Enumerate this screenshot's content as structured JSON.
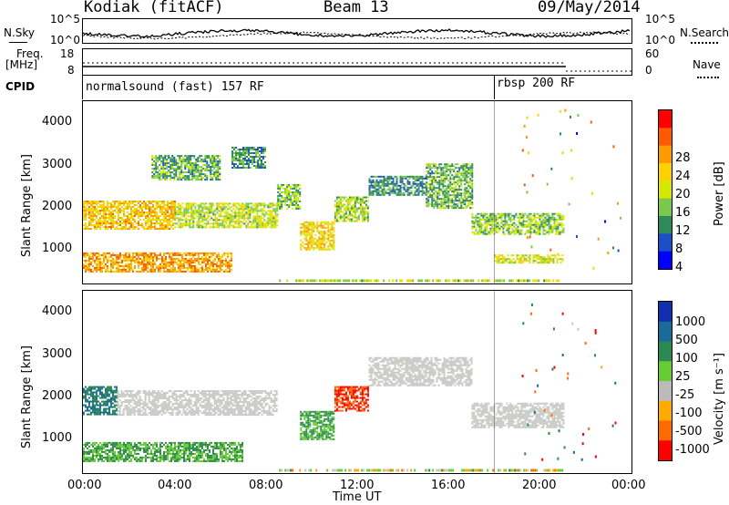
{
  "header": {
    "station": "Kodiak (fitACF)",
    "beam": "Beam 13",
    "date": "09/May/2014"
  },
  "noise_panel": {
    "left_label": "N.Sky",
    "right_label": "N.Search",
    "left_ticks": [
      "10^5",
      "10^0"
    ],
    "right_ticks": [
      "10^5",
      "10^0"
    ]
  },
  "freq_panel": {
    "left_label_line1": "Freq.",
    "left_label_line2": "[MHz]",
    "right_label": "Nave",
    "left_ticks": [
      "18",
      "8"
    ],
    "right_ticks": [
      "60",
      "0"
    ]
  },
  "cpid_panel": {
    "label": "CPID",
    "programs": [
      {
        "name": "normalsound (fast) 157 RF",
        "start_hour": 0
      },
      {
        "name": "rbsp 200 RF",
        "start_hour": 18
      }
    ]
  },
  "power_panel": {
    "ylabel": "Slant Range [km]",
    "yticks": [
      "4000",
      "3000",
      "2000",
      "1000"
    ],
    "colorbar_label": "Power [dB]",
    "colorbar_ticks": [
      "28",
      "24",
      "20",
      "16",
      "12",
      "8",
      "4"
    ],
    "colorbar_colors": [
      "#ff0000",
      "#ff5a00",
      "#ff9900",
      "#ffd000",
      "#d4e800",
      "#7cc84a",
      "#2e8a5a",
      "#1a4fc8",
      "#0000ff"
    ]
  },
  "velocity_panel": {
    "ylabel": "Slant Range [km]",
    "yticks": [
      "4000",
      "3000",
      "2000",
      "1000"
    ],
    "colorbar_label": "Velocity [m s⁻¹]",
    "colorbar_ticks": [
      "1000",
      "500",
      "100",
      "25",
      "-25",
      "-100",
      "-500",
      "-1000"
    ],
    "colorbar_colors": [
      "#1030b0",
      "#1a6a9a",
      "#2c8a50",
      "#66cc33",
      "#bbbbbb",
      "#ffaa00",
      "#ff6a00",
      "#ff0000"
    ],
    "ground_scatter_color": "#c8c8c4"
  },
  "xaxis": {
    "label": "Time UT",
    "ticks": [
      "00:00",
      "04:00",
      "08:00",
      "12:00",
      "16:00",
      "20:00",
      "00:00"
    ]
  },
  "chart_data": {
    "type": "heatmap",
    "title": "Kodiak (fitACF)  Beam 13  09/May/2014",
    "xlabel": "Time UT",
    "ylabel": "Slant Range [km]",
    "xlim_hours": [
      0,
      24
    ],
    "ylim_km": [
      200,
      4600
    ],
    "power_clim_db": [
      0,
      30
    ],
    "velocity_clim": [
      -1000,
      1000
    ],
    "power_bands": [
      {
        "from_hour": 0.0,
        "to_hour": 4.0,
        "range_km": [
          1500,
          2200
        ],
        "power_db": 20
      },
      {
        "from_hour": 4.0,
        "to_hour": 8.5,
        "range_km": [
          1550,
          2150
        ],
        "power_db": 14
      },
      {
        "from_hour": 8.5,
        "to_hour": 9.5,
        "range_km": [
          2000,
          2600
        ],
        "power_db": 12
      },
      {
        "from_hour": 9.5,
        "to_hour": 11.0,
        "range_km": [
          1000,
          1700
        ],
        "power_db": 18
      },
      {
        "from_hour": 11.0,
        "to_hour": 12.5,
        "range_km": [
          1700,
          2300
        ],
        "power_db": 13
      },
      {
        "from_hour": 12.5,
        "to_hour": 15.0,
        "range_km": [
          2350,
          2800
        ],
        "power_db": 8
      },
      {
        "from_hour": 15.0,
        "to_hour": 17.0,
        "range_km": [
          2000,
          3100
        ],
        "power_db": 10
      },
      {
        "from_hour": 17.0,
        "to_hour": 21.0,
        "range_km": [
          1400,
          1900
        ],
        "power_db": 12
      },
      {
        "from_hour": 0.0,
        "to_hour": 6.5,
        "range_km": [
          500,
          950
        ],
        "power_db": 22
      },
      {
        "from_hour": 3.0,
        "to_hour": 6.0,
        "range_km": [
          2700,
          3300
        ],
        "power_db": 10
      },
      {
        "from_hour": 6.5,
        "to_hour": 8.0,
        "range_km": [
          3000,
          3500
        ],
        "power_db": 8
      },
      {
        "from_hour": 18.0,
        "to_hour": 21.0,
        "range_km": [
          700,
          900
        ],
        "power_db": 16
      }
    ],
    "velocity_bands": [
      {
        "from_hour": 0.0,
        "to_hour": 1.5,
        "range_km": [
          1600,
          2300
        ],
        "velocity": 500
      },
      {
        "from_hour": 1.5,
        "to_hour": 8.5,
        "range_km": [
          1600,
          2200
        ],
        "velocity": 0
      },
      {
        "from_hour": 0.0,
        "to_hour": 7.0,
        "range_km": [
          500,
          950
        ],
        "velocity": 100
      },
      {
        "from_hour": 9.5,
        "to_hour": 11.0,
        "range_km": [
          1000,
          1700
        ],
        "velocity": 100
      },
      {
        "from_hour": 11.0,
        "to_hour": 12.5,
        "range_km": [
          1700,
          2300
        ],
        "velocity": -500
      },
      {
        "from_hour": 12.5,
        "to_hour": 17.0,
        "range_km": [
          2300,
          3000
        ],
        "velocity": 0
      },
      {
        "from_hour": 17.0,
        "to_hour": 21.0,
        "range_km": [
          1300,
          1900
        ],
        "velocity": 0
      }
    ]
  }
}
